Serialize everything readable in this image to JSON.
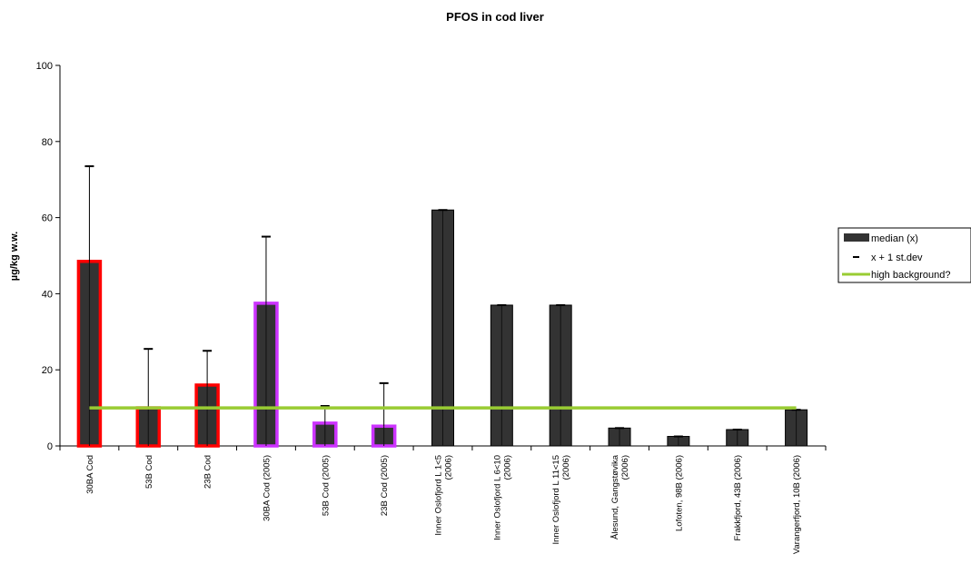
{
  "chart_data": {
    "type": "bar",
    "title": "PFOS in cod liver",
    "xlabel": "",
    "ylabel": "µg/kg w.w.",
    "ylim": [
      0,
      100
    ],
    "yticks": [
      0,
      20,
      40,
      60,
      80,
      100
    ],
    "grid": false,
    "legend_placement": "right",
    "categories": [
      [
        "30BA Cod"
      ],
      [
        "53B Cod"
      ],
      [
        "23B Cod"
      ],
      [
        "30BA Cod (2005)"
      ],
      [
        "53B Cod (2005)"
      ],
      [
        "23B Cod (2005)"
      ],
      [
        "Inner Oslofjord L 1<5",
        "(2006)"
      ],
      [
        "Inner Oslofjord L 6<10",
        "(2006)"
      ],
      [
        "Inner Oslofjord L 11<15",
        "(2006)"
      ],
      [
        "Ålesund, Gangstøvika",
        "(2006)"
      ],
      [
        "Lofoten, 98B (2006)"
      ],
      [
        "Frakkfjord, 43B (2006)"
      ],
      [
        "Varangerfjord, 10B (2006)"
      ]
    ],
    "series": [
      {
        "name": "median (x)",
        "values": [
          48.5,
          10,
          16,
          37.5,
          6,
          5.2,
          62,
          37,
          37,
          4.7,
          2.5,
          4.3,
          9.5
        ],
        "color": "#333333"
      },
      {
        "name": "x + 1 st.dev",
        "values": [
          73.5,
          25.5,
          25,
          55,
          10.5,
          16.5,
          62,
          37,
          37,
          4.7,
          2.5,
          4.3,
          9.5
        ],
        "color": "#000000"
      },
      {
        "name": "high background?",
        "values": [
          10,
          10,
          10,
          10,
          10,
          10,
          10,
          10,
          10,
          10,
          10,
          10,
          10
        ],
        "color": "#99CC33"
      }
    ],
    "bar_outline_colors": [
      "#ff0000",
      "#ff0000",
      "#ff0000",
      "#cc33ff",
      "#cc33ff",
      "#cc33ff",
      "",
      "",
      "",
      "",
      "",
      "",
      ""
    ]
  }
}
